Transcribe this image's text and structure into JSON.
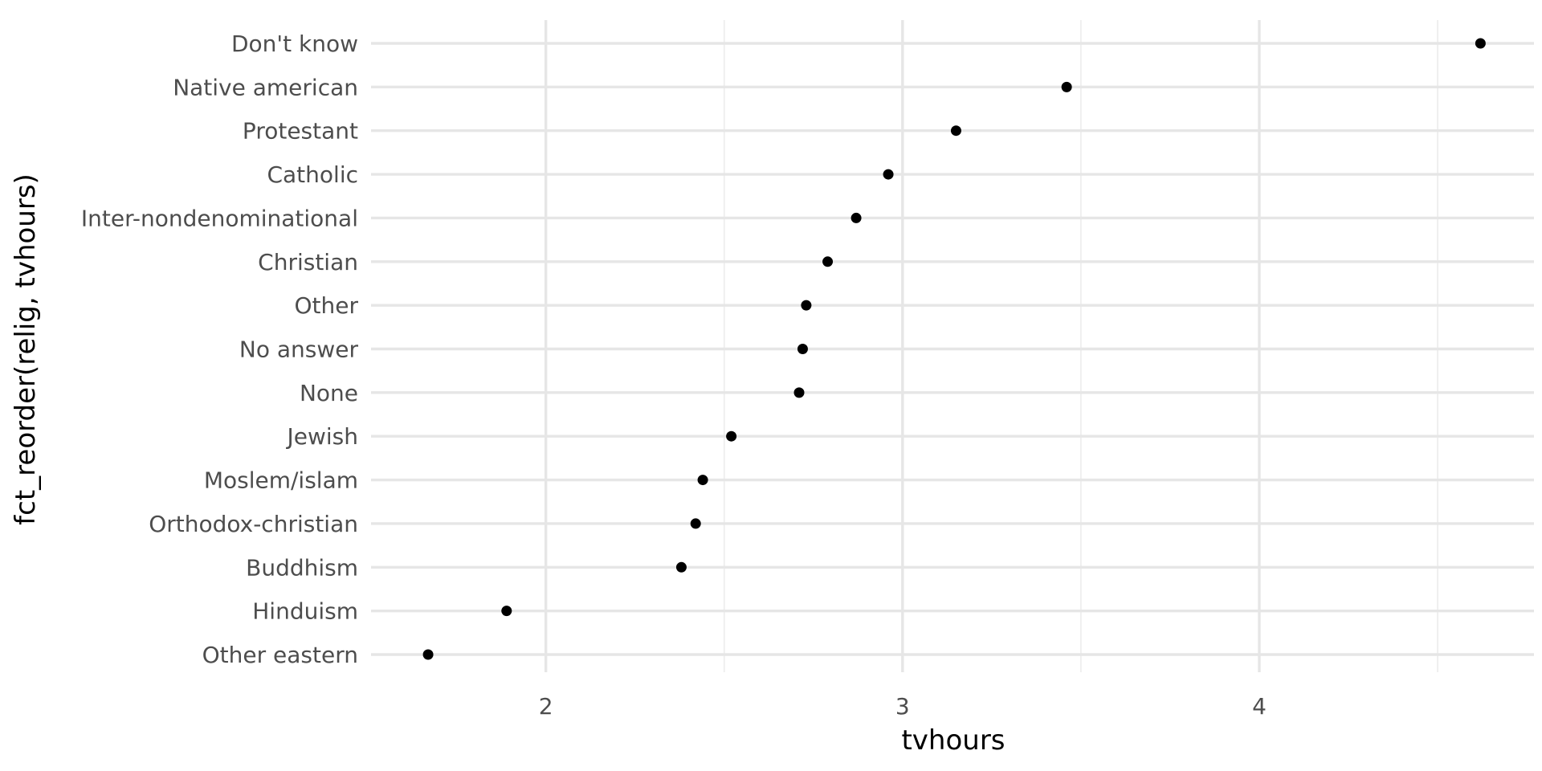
{
  "chart_data": {
    "type": "scatter",
    "title": "",
    "xlabel": "tvhours",
    "ylabel": "fct_reorder(relig, tvhours)",
    "xlim": [
      1.51,
      4.77
    ],
    "x_ticks": [
      2,
      3,
      4
    ],
    "x_tick_labels": [
      "2",
      "3",
      "4"
    ],
    "x_minor_ticks": [
      2.5,
      3.5,
      4.5
    ],
    "grid": true,
    "legend": "none",
    "point_color": "#000000",
    "categories": [
      "Don't know",
      "Native american",
      "Protestant",
      "Catholic",
      "Inter-nondenominational",
      "Christian",
      "Other",
      "No answer",
      "None",
      "Jewish",
      "Moslem/islam",
      "Orthodox-christian",
      "Buddhism",
      "Hinduism",
      "Other eastern"
    ],
    "values": [
      4.62,
      3.46,
      3.15,
      2.96,
      2.87,
      2.79,
      2.73,
      2.72,
      2.71,
      2.52,
      2.44,
      2.42,
      2.38,
      1.89,
      1.67
    ]
  }
}
